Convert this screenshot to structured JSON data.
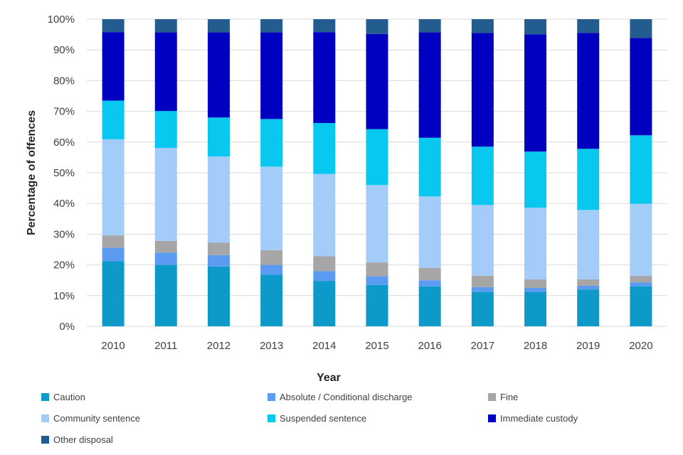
{
  "chart_data": {
    "type": "bar",
    "stacked": true,
    "percent_stacked": true,
    "xlabel": "Year",
    "ylabel": "Percentage of offences",
    "ylim": [
      0,
      100
    ],
    "y_ticks": [
      "0%",
      "10%",
      "20%",
      "30%",
      "40%",
      "50%",
      "60%",
      "70%",
      "80%",
      "90%",
      "100%"
    ],
    "grid": true,
    "legend_position": "bottom",
    "categories": [
      "2010",
      "2011",
      "2012",
      "2013",
      "2014",
      "2015",
      "2016",
      "2017",
      "2018",
      "2019",
      "2020"
    ],
    "series": [
      {
        "name": "Caution",
        "color": "#0E9AC8",
        "values": [
          21.2,
          20.0,
          19.5,
          16.8,
          14.8,
          13.5,
          13.0,
          11.2,
          11.2,
          12.0,
          13.0
        ]
      },
      {
        "name": "Absolute / Conditional discharge",
        "color": "#5B9BF2",
        "values": [
          4.4,
          4.0,
          3.7,
          3.2,
          3.2,
          2.8,
          2.0,
          1.6,
          1.3,
          1.2,
          1.3
        ]
      },
      {
        "name": "Fine",
        "color": "#A6A6A6",
        "values": [
          4.0,
          3.8,
          4.0,
          4.8,
          4.8,
          4.5,
          4.0,
          3.7,
          2.8,
          2.1,
          2.2
        ]
      },
      {
        "name": "Community sentence",
        "color": "#A3CCF9",
        "values": [
          31.3,
          30.3,
          28.1,
          27.2,
          26.8,
          25.2,
          23.3,
          23.0,
          23.3,
          22.6,
          23.4
        ]
      },
      {
        "name": "Suspended sentence",
        "color": "#09C8F0",
        "values": [
          12.6,
          12.0,
          12.7,
          15.5,
          16.6,
          18.2,
          19.1,
          19.0,
          18.3,
          19.9,
          22.3
        ]
      },
      {
        "name": "Immediate custody",
        "color": "#0000C0",
        "values": [
          22.3,
          25.6,
          27.7,
          28.2,
          29.6,
          31.0,
          34.3,
          37.0,
          38.2,
          37.7,
          31.7
        ]
      },
      {
        "name": "Other disposal",
        "color": "#235C8E",
        "values": [
          4.2,
          4.3,
          4.3,
          4.3,
          4.2,
          4.8,
          4.3,
          4.5,
          4.9,
          4.5,
          6.1
        ]
      }
    ]
  }
}
